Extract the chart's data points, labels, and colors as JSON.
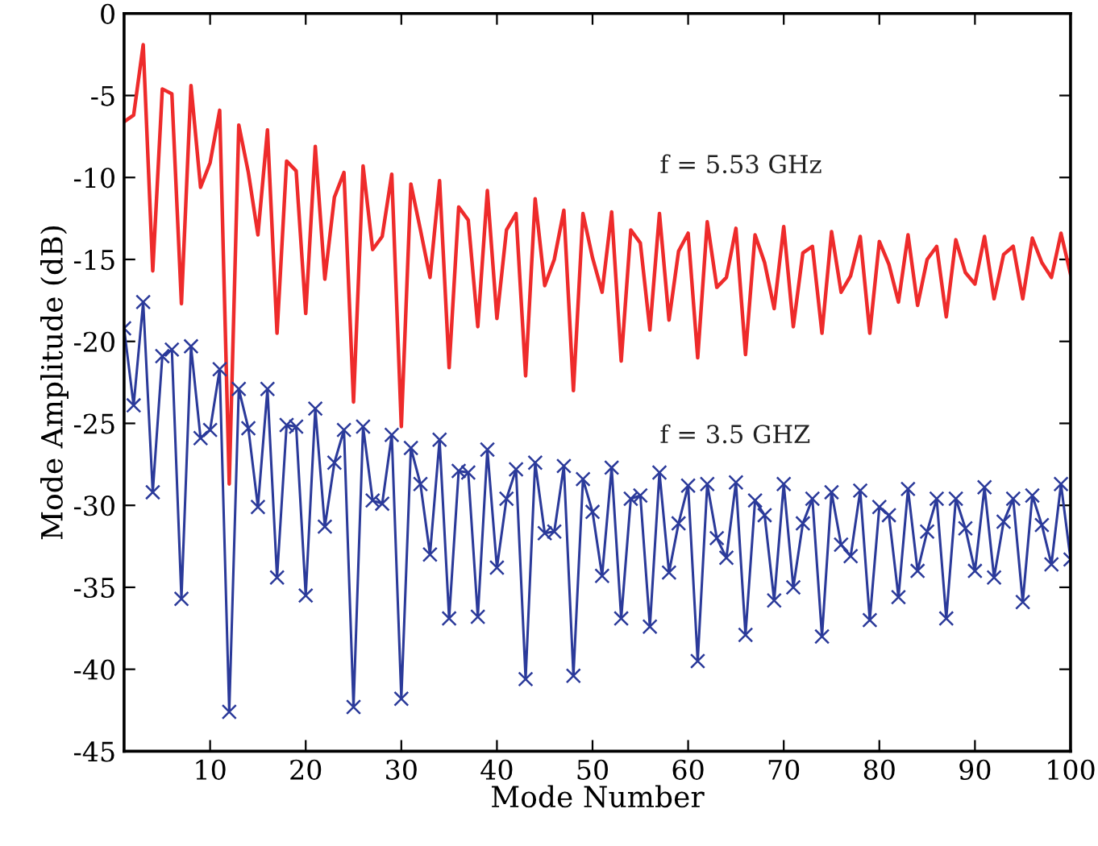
{
  "chart_data": {
    "type": "line",
    "xlabel": "Mode Number",
    "ylabel": "Mode Amplitude (dB)",
    "x": [
      1,
      2,
      3,
      4,
      5,
      6,
      7,
      8,
      9,
      10,
      11,
      12,
      13,
      14,
      15,
      16,
      17,
      18,
      19,
      20,
      21,
      22,
      23,
      24,
      25,
      26,
      27,
      28,
      29,
      30,
      31,
      32,
      33,
      34,
      35,
      36,
      37,
      38,
      39,
      40,
      41,
      42,
      43,
      44,
      45,
      46,
      47,
      48,
      49,
      50,
      51,
      52,
      53,
      54,
      55,
      56,
      57,
      58,
      59,
      60,
      61,
      62,
      63,
      64,
      65,
      66,
      67,
      68,
      69,
      70,
      71,
      72,
      73,
      74,
      75,
      76,
      77,
      78,
      79,
      80,
      81,
      82,
      83,
      84,
      85,
      86,
      87,
      88,
      89,
      90,
      91,
      92,
      93,
      94,
      95,
      96,
      97,
      98,
      99,
      100
    ],
    "series": [
      {
        "color": "#ee2b2b",
        "marker": "none",
        "values": [
          -6.6,
          -6.2,
          -1.9,
          -15.7,
          -4.6,
          -4.9,
          -17.7,
          -4.4,
          -10.6,
          -9.1,
          -5.9,
          -28.7,
          -6.8,
          -9.7,
          -13.5,
          -7.1,
          -19.5,
          -9.0,
          -9.6,
          -18.3,
          -8.1,
          -16.2,
          -11.2,
          -9.7,
          -23.7,
          -9.3,
          -14.4,
          -13.6,
          -9.8,
          -25.2,
          -10.4,
          -13.2,
          -16.1,
          -10.2,
          -21.6,
          -11.8,
          -12.6,
          -19.1,
          -10.8,
          -18.6,
          -13.2,
          -12.2,
          -22.1,
          -11.3,
          -16.6,
          -15.0,
          -12.0,
          -23.0,
          -12.2,
          -14.9,
          -17.0,
          -12.1,
          -21.2,
          -13.2,
          -14.0,
          -19.3,
          -12.2,
          -18.7,
          -14.5,
          -13.4,
          -21.0,
          -12.7,
          -16.7,
          -16.1,
          -13.1,
          -20.8,
          -13.5,
          -15.2,
          -18.0,
          -13.0,
          -19.1,
          -14.6,
          -14.2,
          -19.5,
          -13.3,
          -17.0,
          -16.0,
          -13.6,
          -19.5,
          -13.9,
          -15.3,
          -17.6,
          -13.5,
          -17.8,
          -15.0,
          -14.2,
          -18.5,
          -13.8,
          -15.8,
          -16.5,
          -13.6,
          -17.4,
          -14.7,
          -14.2,
          -17.4,
          -13.7,
          -15.2,
          -16.1,
          -13.4,
          -15.9
        ]
      },
      {
        "color": "#2b3a9a",
        "marker": "cross",
        "values": [
          -19.2,
          -23.9,
          -17.6,
          -29.2,
          -20.9,
          -20.5,
          -35.7,
          -20.3,
          -25.9,
          -25.4,
          -21.7,
          -42.6,
          -22.9,
          -25.3,
          -30.1,
          -22.9,
          -34.4,
          -25.1,
          -25.2,
          -35.5,
          -24.1,
          -31.3,
          -27.4,
          -25.4,
          -42.3,
          -25.2,
          -29.7,
          -29.9,
          -25.7,
          -41.8,
          -26.5,
          -28.7,
          -33.0,
          -26.0,
          -36.9,
          -27.9,
          -28.0,
          -36.8,
          -26.6,
          -33.8,
          -29.6,
          -27.8,
          -40.6,
          -27.4,
          -31.7,
          -31.6,
          -27.6,
          -40.4,
          -28.4,
          -30.4,
          -34.3,
          -27.7,
          -36.9,
          -29.6,
          -29.4,
          -37.4,
          -28.0,
          -34.1,
          -31.1,
          -28.8,
          -39.5,
          -28.7,
          -32.0,
          -33.2,
          -28.6,
          -37.9,
          -29.7,
          -30.6,
          -35.8,
          -28.7,
          -35.0,
          -31.1,
          -29.6,
          -38.0,
          -29.2,
          -32.4,
          -33.1,
          -29.1,
          -37.0,
          -30.1,
          -30.6,
          -35.6,
          -29.0,
          -34.0,
          -31.6,
          -29.6,
          -36.9,
          -29.6,
          -31.4,
          -34.0,
          -28.9,
          -34.4,
          -31.0,
          -29.6,
          -35.9,
          -29.4,
          -31.2,
          -33.6,
          -28.7,
          -33.3
        ]
      }
    ],
    "annotations": [
      "f = 5.53 GHz",
      "f = 3.5 GHZ"
    ],
    "xlim": [
      1,
      100
    ],
    "xticks": [
      10,
      20,
      30,
      40,
      50,
      60,
      70,
      80,
      90,
      100
    ],
    "ylim": [
      -45,
      0
    ],
    "yticks": [
      -45,
      -40,
      -35,
      -30,
      -25,
      -20,
      -15,
      -10,
      -5,
      0
    ],
    "grid": false,
    "legend": false,
    "line_style": "solid"
  }
}
